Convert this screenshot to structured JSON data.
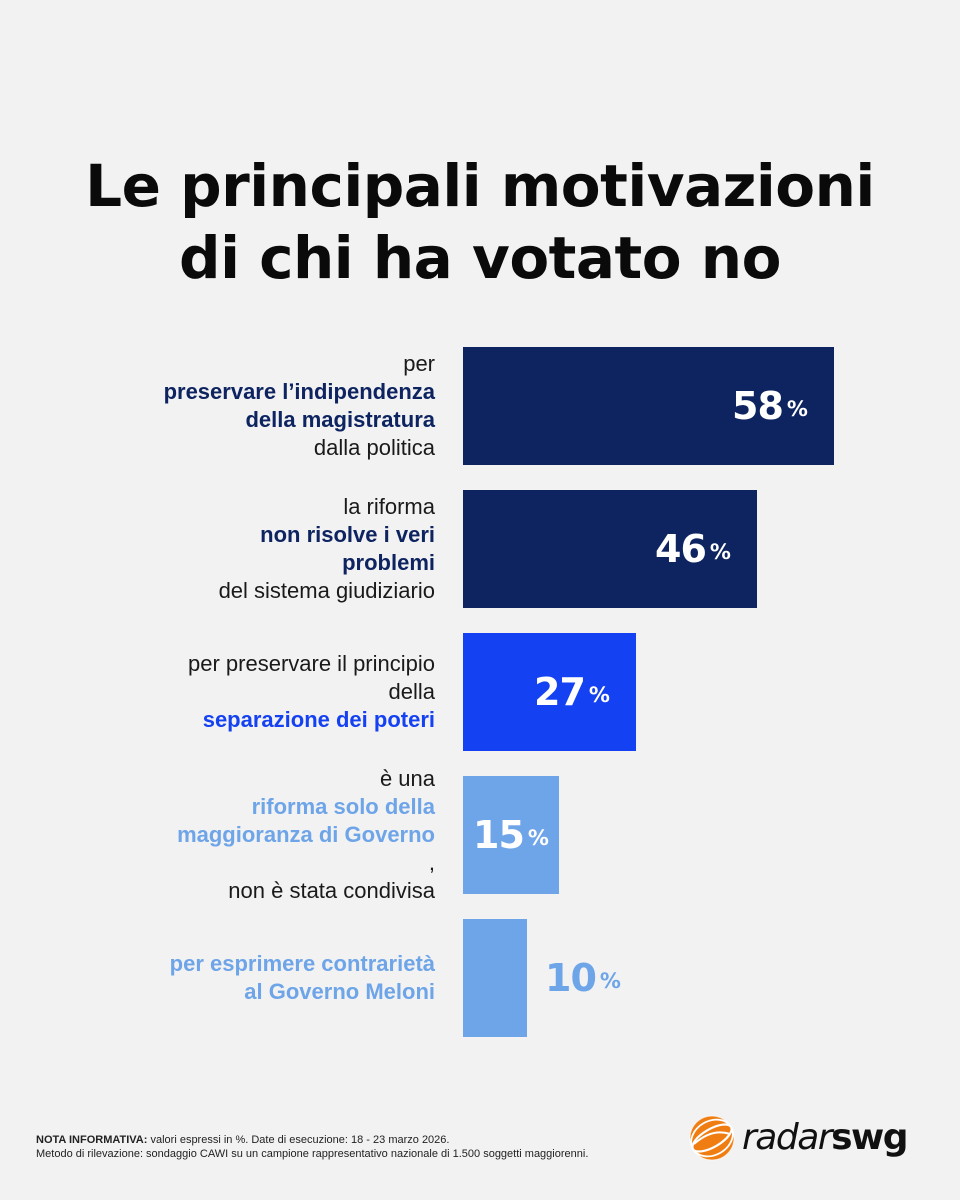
{
  "title": {
    "line1": "Le principali motivazioni",
    "line2": "di chi ha votato no"
  },
  "chart_data": {
    "type": "bar",
    "orientation": "horizontal",
    "unit": "%",
    "title": "Le principali motivazioni di chi ha votato no",
    "categories": [
      "per preservare l’indipendenza della magistratura dalla politica",
      "la riforma non risolve i veri problemi del sistema giudiziario",
      "per preservare il principio della separazione dei poteri",
      "è una riforma solo della maggioranza di Governo, non è stata condivisa",
      "per esprimere contrarietà al Governo Meloni"
    ],
    "values": [
      58,
      46,
      27,
      15,
      10
    ],
    "xlim": [
      0,
      100
    ],
    "grid": false,
    "colors": [
      "#0e2461",
      "#0e2461",
      "#1441f2",
      "#6ea4e8",
      "#6ea4e8"
    ],
    "value_colors": [
      "#ffffff",
      "#ffffff",
      "#ffffff",
      "#ffffff",
      "#6ea4e8"
    ],
    "label_lines": [
      [
        [
          {
            "t": "per ",
            "b": false
          },
          {
            "t": "preservare l’indipendenza",
            "b": true
          }
        ],
        [
          {
            "t": "della magistratura",
            "b": true
          },
          {
            "t": " dalla politica",
            "b": false
          }
        ]
      ],
      [
        [
          {
            "t": "la riforma ",
            "b": false
          },
          {
            "t": "non risolve i veri",
            "b": true
          }
        ],
        [
          {
            "t": "problemi",
            "b": true
          },
          {
            "t": " del sistema giudiziario",
            "b": false
          }
        ]
      ],
      [
        [
          {
            "t": "per preservare il principio",
            "b": false
          }
        ],
        [
          {
            "t": "della ",
            "b": false
          },
          {
            "t": "separazione dei poteri",
            "b": true
          }
        ]
      ],
      [
        [
          {
            "t": "è una ",
            "b": false
          },
          {
            "t": "riforma solo della",
            "b": true
          }
        ],
        [
          {
            "t": "maggioranza di Governo",
            "b": true
          },
          {
            "t": ",",
            "b": false
          }
        ],
        [
          {
            "t": "non è stata condivisa",
            "b": false
          }
        ]
      ],
      [
        [
          {
            "t": "per esprimere contrarietà",
            "b": true
          }
        ],
        [
          {
            "t": "al Governo Meloni",
            "b": true
          }
        ]
      ]
    ],
    "highlight_colors": [
      "#0e2461",
      "#0e2461",
      "#1441f2",
      "#6ea4e8",
      "#6ea4e8"
    ]
  },
  "note": {
    "label": "NOTA INFORMATIVA:",
    "line1": " valori espressi in %. Date di esecuzione: 18 - 23 marzo 2026.",
    "line2": "Metodo di rilevazione: sondaggio CAWI su un campione rappresentativo nazionale di 1.500 soggetti maggiorenni."
  },
  "logo": {
    "word1": "radar",
    "word2": "swg",
    "icon": "radar-globe-icon",
    "accent": "#f07d12"
  }
}
